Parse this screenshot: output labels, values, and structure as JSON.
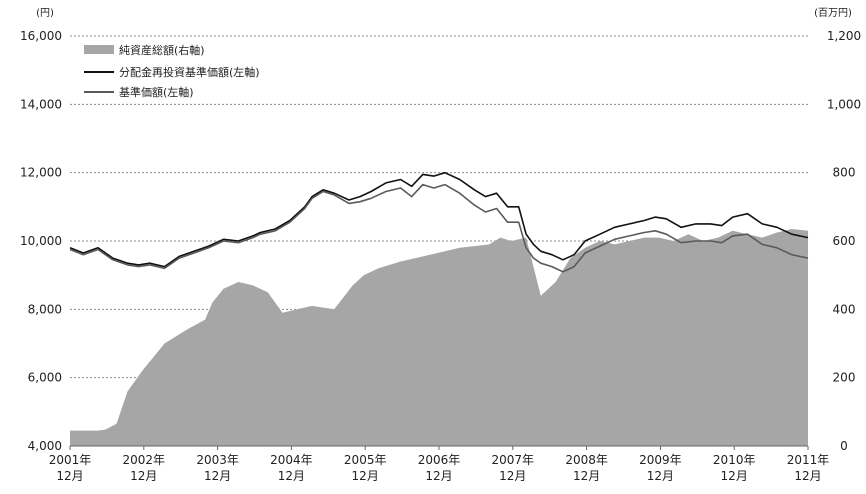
{
  "chart_data": {
    "type": "line",
    "left_axis_unit": "(円)",
    "right_axis_unit": "(百万円)",
    "left_axis": {
      "ylim": [
        4000,
        16000
      ],
      "ticks": [
        "4,000",
        "6,000",
        "8,000",
        "10,000",
        "12,000",
        "14,000",
        "16,000"
      ]
    },
    "right_axis": {
      "ylim": [
        0,
        1200
      ],
      "ticks": [
        "0",
        "200",
        "400",
        "600",
        "800",
        "1,000",
        "1,200"
      ]
    },
    "x_ticks": [
      {
        "year": "2001年",
        "month": "12月"
      },
      {
        "year": "2002年",
        "month": "12月"
      },
      {
        "year": "2003年",
        "month": "12月"
      },
      {
        "year": "2004年",
        "month": "12月"
      },
      {
        "year": "2005年",
        "month": "12月"
      },
      {
        "year": "2006年",
        "month": "12月"
      },
      {
        "year": "2007年",
        "month": "12月"
      },
      {
        "year": "2008年",
        "month": "12月"
      },
      {
        "year": "2009年",
        "month": "12月"
      },
      {
        "year": "2010年",
        "month": "12月"
      },
      {
        "year": "2011年",
        "month": "12月"
      }
    ],
    "grid": "horizontal-dotted",
    "legend_position": "top-left",
    "series": [
      {
        "name": "純資産総額(右軸)",
        "kind": "area",
        "axis": "right",
        "color": "#a6a6a6",
        "x": [
          2001.92,
          2002.3,
          2002.4,
          2002.55,
          2002.7,
          2002.9,
          2003.2,
          2003.5,
          2003.75,
          2003.85,
          2004.0,
          2004.2,
          2004.4,
          2004.6,
          2004.8,
          2005.0,
          2005.2,
          2005.5,
          2005.75,
          2005.9,
          2006.1,
          2006.4,
          2006.6,
          2006.9,
          2007.2,
          2007.4,
          2007.6,
          2007.75,
          2007.9,
          2008.1,
          2008.3,
          2008.5,
          2008.7,
          2008.9,
          2009.1,
          2009.3,
          2009.5,
          2009.7,
          2009.9,
          2010.1,
          2010.3,
          2010.5,
          2010.7,
          2010.9,
          2011.1,
          2011.3,
          2011.5,
          2011.7,
          2011.92
        ],
        "values": [
          45,
          45,
          48,
          65,
          160,
          220,
          300,
          340,
          370,
          420,
          460,
          480,
          470,
          450,
          390,
          400,
          410,
          400,
          470,
          500,
          520,
          540,
          550,
          565,
          580,
          585,
          590,
          610,
          600,
          610,
          440,
          480,
          550,
          580,
          600,
          590,
          600,
          610,
          610,
          600,
          620,
          600,
          610,
          630,
          620,
          610,
          625,
          635,
          630
        ]
      },
      {
        "name": "分配金再投資基準価額(左軸)",
        "kind": "line",
        "axis": "left",
        "color": "#111111",
        "x": [
          2001.92,
          2002.1,
          2002.3,
          2002.5,
          2002.7,
          2002.85,
          2003.0,
          2003.2,
          2003.4,
          2003.6,
          2003.8,
          2004.0,
          2004.2,
          2004.4,
          2004.5,
          2004.7,
          2004.9,
          2005.1,
          2005.2,
          2005.35,
          2005.5,
          2005.7,
          2005.85,
          2006.0,
          2006.2,
          2006.4,
          2006.55,
          2006.7,
          2006.85,
          2007.0,
          2007.2,
          2007.4,
          2007.55,
          2007.7,
          2007.85,
          2008.0,
          2008.1,
          2008.2,
          2008.3,
          2008.45,
          2008.6,
          2008.75,
          2008.9,
          2009.1,
          2009.3,
          2009.5,
          2009.7,
          2009.85,
          2010.0,
          2010.2,
          2010.4,
          2010.6,
          2010.75,
          2010.9,
          2011.1,
          2011.3,
          2011.5,
          2011.7,
          2011.92
        ],
        "values": [
          9800,
          9650,
          9800,
          9500,
          9350,
          9300,
          9350,
          9250,
          9550,
          9700,
          9850,
          10050,
          10000,
          10150,
          10250,
          10350,
          10600,
          11000,
          11300,
          11500,
          11400,
          11200,
          11300,
          11450,
          11700,
          11800,
          11600,
          11950,
          11900,
          12000,
          11800,
          11500,
          11300,
          11400,
          11000,
          11000,
          10200,
          9900,
          9700,
          9600,
          9450,
          9600,
          10000,
          10200,
          10400,
          10500,
          10600,
          10700,
          10650,
          10400,
          10500,
          10500,
          10450,
          10700,
          10800,
          10500,
          10400,
          10200,
          10100
        ]
      },
      {
        "name": "基準価額(左軸)",
        "kind": "line",
        "axis": "left",
        "color": "#5a5a5a",
        "x": [
          2001.92,
          2002.1,
          2002.3,
          2002.5,
          2002.7,
          2002.85,
          2003.0,
          2003.2,
          2003.4,
          2003.6,
          2003.8,
          2004.0,
          2004.2,
          2004.4,
          2004.5,
          2004.7,
          2004.9,
          2005.1,
          2005.2,
          2005.35,
          2005.5,
          2005.7,
          2005.85,
          2006.0,
          2006.2,
          2006.4,
          2006.55,
          2006.7,
          2006.85,
          2007.0,
          2007.2,
          2007.4,
          2007.55,
          2007.7,
          2007.85,
          2008.0,
          2008.1,
          2008.2,
          2008.3,
          2008.45,
          2008.6,
          2008.75,
          2008.9,
          2009.1,
          2009.3,
          2009.5,
          2009.7,
          2009.85,
          2010.0,
          2010.2,
          2010.4,
          2010.6,
          2010.75,
          2010.9,
          2011.1,
          2011.3,
          2011.5,
          2011.7,
          2011.92
        ],
        "values": [
          9750,
          9600,
          9750,
          9450,
          9300,
          9250,
          9300,
          9200,
          9500,
          9650,
          9800,
          10000,
          9950,
          10100,
          10200,
          10300,
          10550,
          10950,
          11250,
          11450,
          11350,
          11100,
          11150,
          11250,
          11450,
          11550,
          11300,
          11650,
          11550,
          11650,
          11400,
          11050,
          10850,
          10950,
          10550,
          10550,
          9800,
          9500,
          9350,
          9250,
          9100,
          9250,
          9650,
          9850,
          10050,
          10150,
          10250,
          10300,
          10200,
          9950,
          10000,
          10000,
          9950,
          10150,
          10200,
          9900,
          9800,
          9600,
          9500
        ]
      }
    ]
  }
}
